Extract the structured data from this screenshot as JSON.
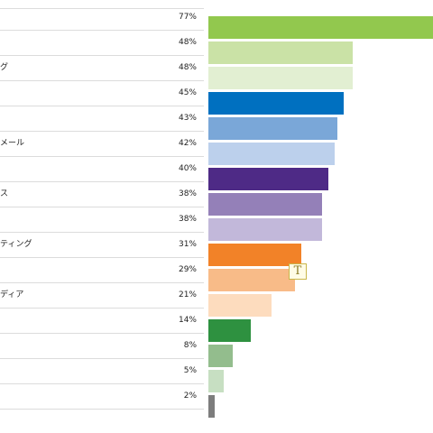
{
  "chart_data": {
    "type": "bar",
    "orientation": "horizontal",
    "title": "",
    "xlabel": "",
    "ylabel": "",
    "xlim": [
      0,
      77
    ],
    "grid": false,
    "legend": "none",
    "categories": [
      "",
      "",
      "グ",
      "",
      "",
      "メール",
      "",
      "ス",
      "",
      "ティング",
      "",
      "ディア",
      "",
      "",
      "",
      ""
    ],
    "values": [
      77,
      48,
      48,
      45,
      43,
      42,
      40,
      38,
      38,
      31,
      29,
      21,
      14,
      8,
      5,
      2
    ],
    "value_labels": [
      "77%",
      "48%",
      "48%",
      "45%",
      "43%",
      "42%",
      "40%",
      "38%",
      "38%",
      "31%",
      "29%",
      "21%",
      "14%",
      "8%",
      "5%",
      "2%"
    ],
    "colors": [
      "#92c84e",
      "#cae2a6",
      "#e2efd2",
      "#0070c0",
      "#7aa7d8",
      "#bcd0ec",
      "#4e2a86",
      "#9480b8",
      "#c2b8da",
      "#f28228",
      "#f8bb88",
      "#fddcbe",
      "#2e9140",
      "#93bd8d",
      "#c7dfc2",
      "#7d7d7d"
    ]
  },
  "cursor": {
    "icon": "text-cursor-icon",
    "glyph": "T"
  }
}
